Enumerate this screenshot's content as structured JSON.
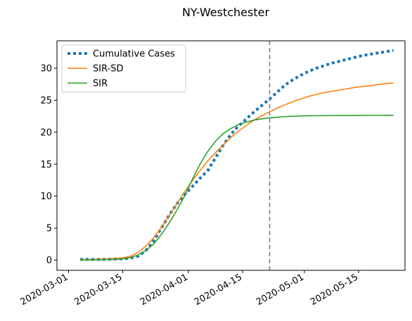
{
  "chart_data": {
    "type": "line",
    "title": "NY-Westchester",
    "xlabel": "",
    "ylabel": "",
    "x_axis_type": "date",
    "xlim": [
      "2020-02-27",
      "2020-05-27"
    ],
    "ylim": [
      -1.6,
      34.3
    ],
    "x_ticks": [
      "2020-03-01",
      "2020-03-15",
      "2020-04-01",
      "2020-04-15",
      "2020-05-01",
      "2020-05-15"
    ],
    "y_ticks": [
      0,
      5,
      10,
      15,
      20,
      25,
      30
    ],
    "grid": false,
    "legend_position": "upper left",
    "vline": {
      "x": "2020-04-22",
      "style": "dashed",
      "color": "#808080"
    },
    "series": [
      {
        "name": "Cumulative Cases",
        "style": "dotted",
        "color": "#1f77b4",
        "points": [
          [
            "2020-03-04",
            0.1
          ],
          [
            "2020-03-08",
            0.1
          ],
          [
            "2020-03-12",
            0.15
          ],
          [
            "2020-03-15",
            0.2
          ],
          [
            "2020-03-17",
            0.3
          ],
          [
            "2020-03-19",
            0.6
          ],
          [
            "2020-03-21",
            1.5
          ],
          [
            "2020-03-23",
            3.0
          ],
          [
            "2020-03-25",
            5.0
          ],
          [
            "2020-03-27",
            7.0
          ],
          [
            "2020-03-29",
            8.8
          ],
          [
            "2020-03-31",
            10.2
          ],
          [
            "2020-04-02",
            11.5
          ],
          [
            "2020-04-04",
            12.8
          ],
          [
            "2020-04-06",
            14.0
          ],
          [
            "2020-04-08",
            16.0
          ],
          [
            "2020-04-10",
            18.0
          ],
          [
            "2020-04-12",
            19.7
          ],
          [
            "2020-04-14",
            21.0
          ],
          [
            "2020-04-16",
            22.1
          ],
          [
            "2020-04-18",
            23.2
          ],
          [
            "2020-04-20",
            24.2
          ],
          [
            "2020-04-22",
            25.2
          ],
          [
            "2020-04-24",
            26.3
          ],
          [
            "2020-04-26",
            27.4
          ],
          [
            "2020-04-28",
            28.2
          ],
          [
            "2020-04-30",
            28.9
          ],
          [
            "2020-05-02",
            29.5
          ],
          [
            "2020-05-04",
            30.0
          ],
          [
            "2020-05-06",
            30.4
          ],
          [
            "2020-05-08",
            30.8
          ],
          [
            "2020-05-10",
            31.1
          ],
          [
            "2020-05-12",
            31.4
          ],
          [
            "2020-05-14",
            31.7
          ],
          [
            "2020-05-16",
            32.0
          ],
          [
            "2020-05-18",
            32.2
          ],
          [
            "2020-05-20",
            32.4
          ],
          [
            "2020-05-22",
            32.6
          ],
          [
            "2020-05-24",
            32.8
          ]
        ]
      },
      {
        "name": "SIR-SD",
        "style": "solid",
        "color": "#ff7f0e",
        "points": [
          [
            "2020-03-04",
            0.05
          ],
          [
            "2020-03-08",
            0.1
          ],
          [
            "2020-03-12",
            0.2
          ],
          [
            "2020-03-15",
            0.35
          ],
          [
            "2020-03-17",
            0.6
          ],
          [
            "2020-03-19",
            1.2
          ],
          [
            "2020-03-21",
            2.2
          ],
          [
            "2020-03-23",
            3.5
          ],
          [
            "2020-03-25",
            5.1
          ],
          [
            "2020-03-27",
            6.9
          ],
          [
            "2020-03-29",
            8.8
          ],
          [
            "2020-03-31",
            10.7
          ],
          [
            "2020-04-02",
            12.4
          ],
          [
            "2020-04-04",
            14.0
          ],
          [
            "2020-04-06",
            15.5
          ],
          [
            "2020-04-08",
            16.8
          ],
          [
            "2020-04-10",
            18.0
          ],
          [
            "2020-04-12",
            19.2
          ],
          [
            "2020-04-14",
            20.2
          ],
          [
            "2020-04-16",
            21.1
          ],
          [
            "2020-04-18",
            21.9
          ],
          [
            "2020-04-20",
            22.6
          ],
          [
            "2020-04-22",
            23.2
          ],
          [
            "2020-04-24",
            23.8
          ],
          [
            "2020-04-26",
            24.3
          ],
          [
            "2020-04-28",
            24.8
          ],
          [
            "2020-04-30",
            25.2
          ],
          [
            "2020-05-02",
            25.6
          ],
          [
            "2020-05-04",
            25.9
          ],
          [
            "2020-05-06",
            26.2
          ],
          [
            "2020-05-08",
            26.4
          ],
          [
            "2020-05-10",
            26.6
          ],
          [
            "2020-05-12",
            26.8
          ],
          [
            "2020-05-14",
            27.0
          ],
          [
            "2020-05-16",
            27.15
          ],
          [
            "2020-05-18",
            27.3
          ],
          [
            "2020-05-20",
            27.45
          ],
          [
            "2020-05-22",
            27.6
          ],
          [
            "2020-05-24",
            27.7
          ]
        ]
      },
      {
        "name": "SIR",
        "style": "solid",
        "color": "#2ca02c",
        "points": [
          [
            "2020-03-04",
            0.0
          ],
          [
            "2020-03-08",
            0.05
          ],
          [
            "2020-03-12",
            0.1
          ],
          [
            "2020-03-15",
            0.2
          ],
          [
            "2020-03-17",
            0.4
          ],
          [
            "2020-03-19",
            0.8
          ],
          [
            "2020-03-21",
            1.5
          ],
          [
            "2020-03-23",
            2.5
          ],
          [
            "2020-03-25",
            4.0
          ],
          [
            "2020-03-27",
            5.8
          ],
          [
            "2020-03-29",
            7.8
          ],
          [
            "2020-03-31",
            10.0
          ],
          [
            "2020-04-02",
            12.6
          ],
          [
            "2020-04-04",
            15.0
          ],
          [
            "2020-04-06",
            17.0
          ],
          [
            "2020-04-08",
            18.6
          ],
          [
            "2020-04-10",
            19.8
          ],
          [
            "2020-04-12",
            20.6
          ],
          [
            "2020-04-14",
            21.2
          ],
          [
            "2020-04-16",
            21.6
          ],
          [
            "2020-04-18",
            21.9
          ],
          [
            "2020-04-20",
            22.1
          ],
          [
            "2020-04-22",
            22.25
          ],
          [
            "2020-04-24",
            22.35
          ],
          [
            "2020-04-26",
            22.45
          ],
          [
            "2020-04-28",
            22.5
          ],
          [
            "2020-04-30",
            22.55
          ],
          [
            "2020-05-02",
            22.58
          ],
          [
            "2020-05-06",
            22.6
          ],
          [
            "2020-05-10",
            22.62
          ],
          [
            "2020-05-14",
            22.63
          ],
          [
            "2020-05-18",
            22.64
          ],
          [
            "2020-05-24",
            22.65
          ]
        ]
      }
    ]
  }
}
